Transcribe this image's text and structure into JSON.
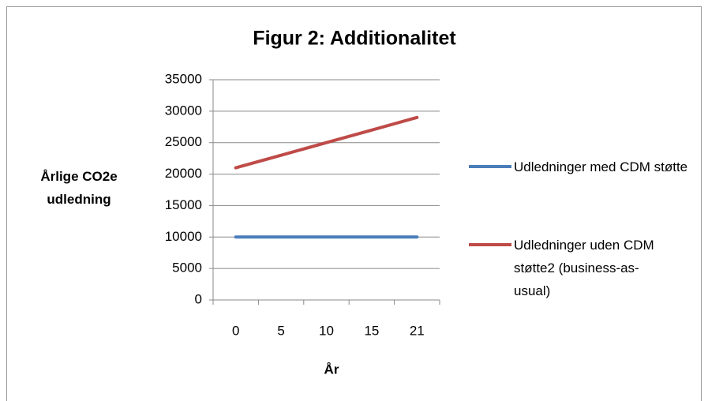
{
  "chart_data": {
    "type": "line",
    "title": "Figur 2: Additionalitet",
    "x_label": "År",
    "y_label": "Årlige CO2e udledning",
    "categories": [
      "0",
      "5",
      "10",
      "15",
      "21"
    ],
    "series": [
      {
        "name": "Udledninger med CDM støtte",
        "color": "#4a7ebb",
        "values": [
          10000,
          10000,
          10000,
          10000,
          10000
        ]
      },
      {
        "name": "Udledninger uden CDM støtte2 (business-as-usual)",
        "color": "#be4b48",
        "values": [
          21000,
          23000,
          25000,
          27000,
          29000
        ]
      }
    ],
    "ylim": [
      0,
      35000
    ],
    "yticks": [
      0,
      5000,
      10000,
      15000,
      20000,
      25000,
      30000,
      35000
    ],
    "grid": true,
    "legend": "right"
  }
}
